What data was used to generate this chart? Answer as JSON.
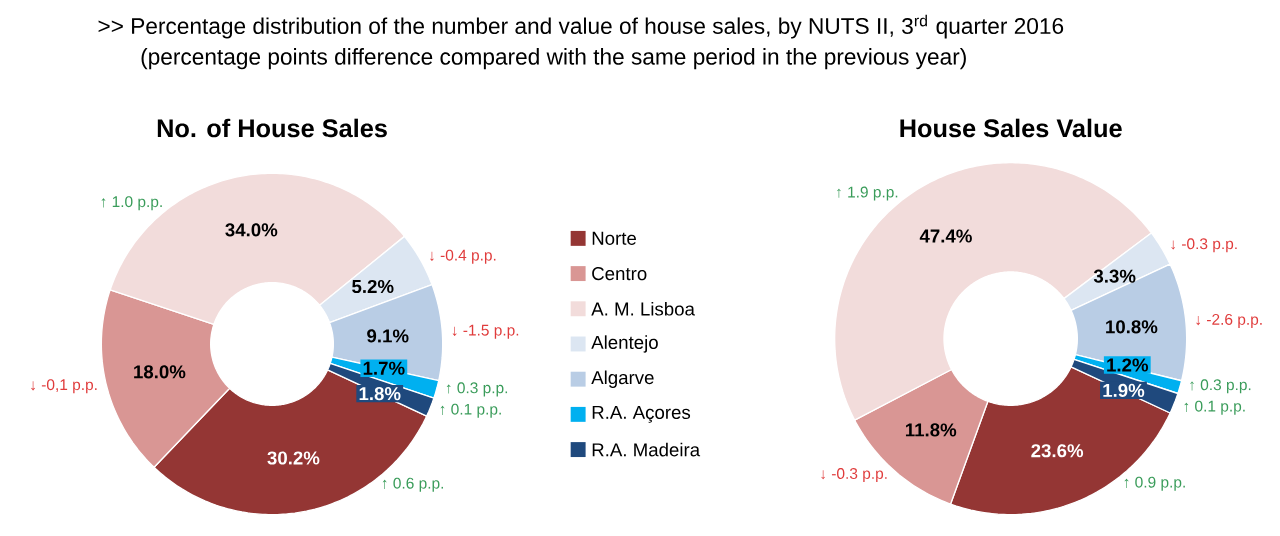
{
  "chart_data": [
    {
      "type": "other",
      "title": ">> Percentage distribution of the number and value of house sales, by NUTS II, 3$^{rd}$ quarter 2016",
      "subtitle": "(percentage points difference compared with the same period in the previous year)"
    },
    {
      "type": "donut",
      "title": "No. of House Sales",
      "legend": "right",
      "categories": [
        "Norte",
        "Centro",
        "A. M. Lisboa",
        "Alentejo",
        "Algarve",
        "R.A. Açores",
        "R.A. Madeira"
      ],
      "values": [
        30.2,
        18.0,
        34.0,
        5.2,
        9.1,
        1.7,
        1.8
      ],
      "value_labels": [
        "30.2%",
        "18.0%",
        "34.0%",
        "5.2%",
        "9.1%",
        "1.7%",
        "1.8%"
      ],
      "colors": [
        "#943634",
        "#d99694",
        "#f2dcdb",
        "#dce6f2",
        "#b9cde5",
        "#00b0f0",
        "#1f497d"
      ],
      "annotations": [
        "↑ 0.6 p.p.",
        "↓ -0,1 p.p.",
        "↑ 1.0 p.p.",
        "↓ -0.4 p.p.",
        "↓ -1.5 p.p.",
        "↑ 0.3 p.p.",
        "↑ 0.1 p.p."
      ]
    },
    {
      "type": "donut",
      "title": "House Sales Value",
      "categories": [
        null,
        null,
        null,
        null,
        null,
        null,
        null
      ],
      "values": [
        23.6,
        11.8,
        47.4,
        3.3,
        10.8,
        1.2,
        1.9
      ],
      "value_labels": [
        "23.6%",
        "11.8%",
        "47.4%",
        "3.3%",
        "10.8%",
        "1.2%",
        "1.9%"
      ],
      "colors": [
        "#943634",
        "#d99694",
        "#f2dcdb",
        "#dce6f2",
        "#b9cde5",
        "#00b0f0",
        "#1f497d"
      ],
      "annotations": [
        "↑ 0.9 p.p.",
        "↓ -0.3 p.p.",
        "↑ 1.9 p.p.",
        "↓ -0.3 p.p.",
        "↓ -2.6 p.p.",
        "↑ 0.3 p.p.",
        "↑ 0.1 p.p."
      ]
    }
  ]
}
